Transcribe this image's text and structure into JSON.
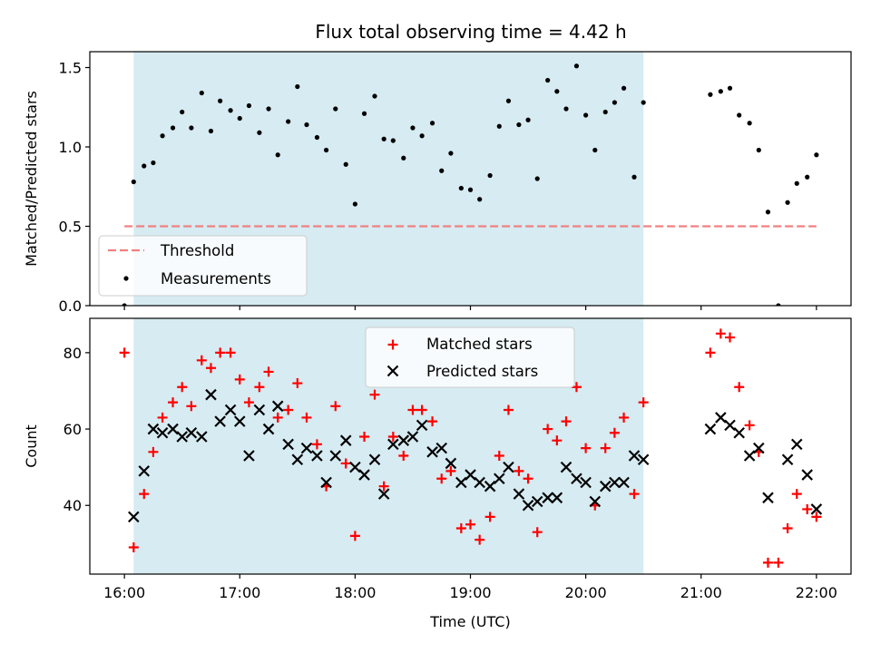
{
  "chart_data": [
    {
      "type": "scatter",
      "title": "Flux total observing time = 4.42 h",
      "xlabel": "",
      "ylabel": "Matched/Predicted stars",
      "ylim": [
        0.0,
        1.6
      ],
      "yticks": [
        0.0,
        0.5,
        1.0,
        1.5
      ],
      "ytick_labels": [
        "0.0",
        "0.5",
        "1.0",
        "1.5"
      ],
      "xlim_hours": [
        15.7,
        22.3
      ],
      "xticks_hours": [
        16,
        17,
        18,
        19,
        20,
        21,
        22
      ],
      "shaded_span_hours": [
        16.08,
        20.5
      ],
      "shaded_color": "#add8e6",
      "grid": false,
      "legend_position": "lower-left",
      "threshold": {
        "name": "Threshold",
        "value": 0.5,
        "x_hours": [
          16.0,
          22.0
        ],
        "color": "#f08080"
      },
      "series": [
        {
          "name": "Measurements",
          "color": "#000000",
          "x_hours": [
            16.0,
            16.08,
            16.17,
            16.25,
            16.33,
            16.42,
            16.5,
            16.58,
            16.67,
            16.75,
            16.83,
            16.92,
            17.0,
            17.08,
            17.17,
            17.25,
            17.33,
            17.42,
            17.5,
            17.58,
            17.67,
            17.75,
            17.83,
            17.92,
            18.0,
            18.08,
            18.17,
            18.25,
            18.33,
            18.42,
            18.5,
            18.58,
            18.67,
            18.75,
            18.83,
            18.92,
            19.0,
            19.08,
            19.17,
            19.25,
            19.33,
            19.42,
            19.5,
            19.58,
            19.67,
            19.75,
            19.83,
            19.92,
            20.0,
            20.08,
            20.17,
            20.25,
            20.33,
            20.42,
            20.5,
            21.08,
            21.17,
            21.25,
            21.33,
            21.42,
            21.5,
            21.58,
            21.67,
            21.75,
            21.83,
            21.92,
            22.0
          ],
          "y": [
            0.0,
            0.78,
            0.88,
            0.9,
            1.07,
            1.12,
            1.22,
            1.12,
            1.34,
            1.1,
            1.29,
            1.23,
            1.18,
            1.26,
            1.09,
            1.24,
            0.95,
            1.16,
            1.38,
            1.14,
            1.06,
            0.98,
            1.24,
            0.89,
            0.64,
            1.21,
            1.32,
            1.05,
            1.04,
            0.93,
            1.12,
            1.07,
            1.15,
            0.85,
            0.96,
            0.74,
            0.73,
            0.67,
            0.82,
            1.13,
            1.29,
            1.14,
            1.17,
            0.8,
            1.42,
            1.35,
            1.24,
            1.51,
            1.2,
            0.98,
            1.22,
            1.28,
            1.37,
            0.81,
            1.28,
            1.33,
            1.35,
            1.37,
            1.2,
            1.15,
            0.98,
            0.59,
            0.0,
            0.65,
            0.77,
            0.81,
            0.95
          ]
        }
      ]
    },
    {
      "type": "scatter",
      "title": "",
      "xlabel": "Time (UTC)",
      "ylabel": "Count",
      "ylim": [
        22,
        89
      ],
      "yticks": [
        40,
        60,
        80
      ],
      "ytick_labels": [
        "40",
        "60",
        "80"
      ],
      "xlim_hours": [
        15.7,
        22.3
      ],
      "xticks_hours": [
        16,
        17,
        18,
        19,
        20,
        21,
        22
      ],
      "xtick_labels": [
        "16:00",
        "17:00",
        "18:00",
        "19:00",
        "20:00",
        "21:00",
        "22:00"
      ],
      "shaded_span_hours": [
        16.08,
        20.5
      ],
      "shaded_color": "#add8e6",
      "grid": false,
      "legend_position": "upper-center",
      "series": [
        {
          "name": "Matched stars",
          "marker": "plus",
          "color": "#ff0000",
          "x_hours": [
            16.0,
            16.08,
            16.17,
            16.25,
            16.33,
            16.42,
            16.5,
            16.58,
            16.67,
            16.75,
            16.83,
            16.92,
            17.0,
            17.08,
            17.17,
            17.25,
            17.33,
            17.42,
            17.5,
            17.58,
            17.67,
            17.75,
            17.83,
            17.92,
            18.0,
            18.08,
            18.17,
            18.25,
            18.33,
            18.42,
            18.5,
            18.58,
            18.67,
            18.75,
            18.83,
            18.92,
            19.0,
            19.08,
            19.17,
            19.25,
            19.33,
            19.42,
            19.5,
            19.58,
            19.67,
            19.75,
            19.83,
            19.92,
            20.0,
            20.08,
            20.17,
            20.25,
            20.33,
            20.42,
            20.5,
            21.08,
            21.17,
            21.25,
            21.33,
            21.42,
            21.5,
            21.58,
            21.67,
            21.75,
            21.83,
            21.92,
            22.0
          ],
          "y": [
            80,
            29,
            43,
            54,
            63,
            67,
            71,
            66,
            78,
            76,
            80,
            80,
            73,
            67,
            71,
            75,
            63,
            65,
            72,
            63,
            56,
            45,
            66,
            51,
            32,
            58,
            69,
            45,
            58,
            53,
            65,
            65,
            62,
            47,
            49,
            34,
            35,
            31,
            37,
            53,
            65,
            49,
            47,
            33,
            60,
            57,
            62,
            71,
            55,
            40,
            55,
            59,
            63,
            43,
            67,
            80,
            85,
            84,
            71,
            61,
            54,
            25,
            25,
            34,
            43,
            39,
            37
          ]
        },
        {
          "name": "Predicted stars",
          "marker": "x",
          "color": "#000000",
          "x_hours": [
            16.0,
            16.08,
            16.17,
            16.25,
            16.33,
            16.42,
            16.5,
            16.58,
            16.67,
            16.75,
            16.83,
            16.92,
            17.0,
            17.08,
            17.17,
            17.25,
            17.33,
            17.42,
            17.5,
            17.58,
            17.67,
            17.75,
            17.83,
            17.92,
            18.0,
            18.08,
            18.17,
            18.25,
            18.33,
            18.42,
            18.5,
            18.58,
            18.67,
            18.75,
            18.83,
            18.92,
            19.0,
            19.08,
            19.17,
            19.25,
            19.33,
            19.42,
            19.5,
            19.58,
            19.67,
            19.75,
            19.83,
            19.92,
            20.0,
            20.08,
            20.17,
            20.25,
            20.33,
            20.42,
            20.5,
            21.08,
            21.17,
            21.25,
            21.33,
            21.42,
            21.5,
            21.58,
            21.67,
            21.75,
            21.83,
            21.92,
            22.0
          ],
          "y": [
            null,
            37,
            49,
            60,
            59,
            60,
            58,
            59,
            58,
            69,
            62,
            65,
            62,
            53,
            65,
            60,
            66,
            56,
            52,
            55,
            53,
            46,
            53,
            57,
            50,
            48,
            52,
            43,
            56,
            57,
            58,
            61,
            54,
            55,
            51,
            46,
            48,
            46,
            45,
            47,
            50,
            43,
            40,
            41,
            42,
            42,
            50,
            47,
            46,
            41,
            45,
            46,
            46,
            53,
            52,
            60,
            63,
            61,
            59,
            53,
            55,
            42,
            null,
            52,
            56,
            48,
            39
          ]
        }
      ]
    }
  ]
}
